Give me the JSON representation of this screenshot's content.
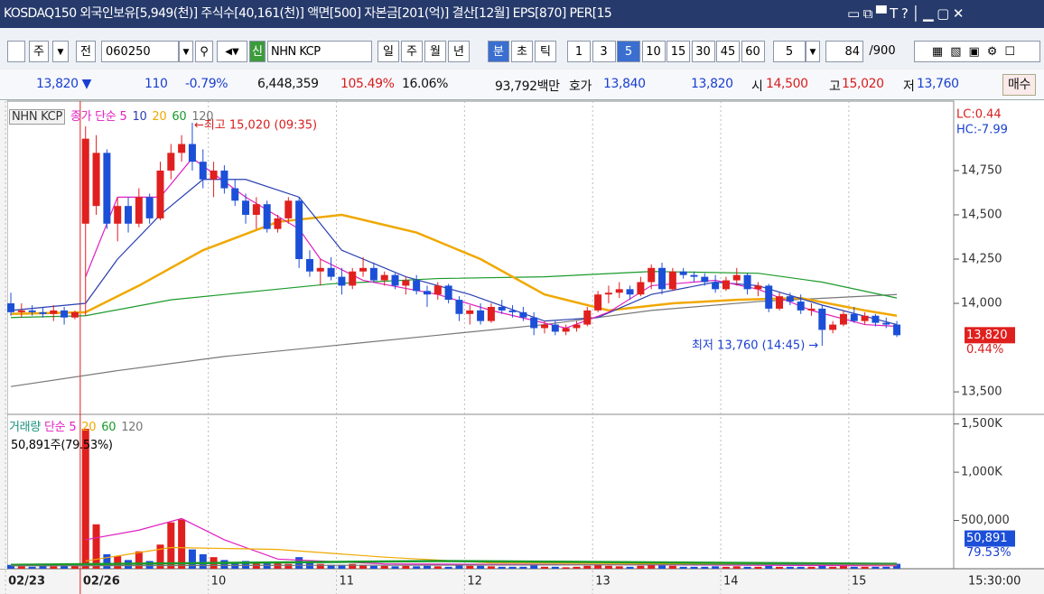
{
  "titlebar": {
    "text": "KOSDAQ150 외국인보유[5,949(천)] 주식수[40,161(천)] 액면[500] 자본금[201(억)] 결산[12월] EPS[870] PER[15"
  },
  "toolbar": {
    "left": [
      "주",
      "전"
    ],
    "code": "060250",
    "new": "신",
    "name": "NHN KCP",
    "periods": [
      {
        "label": "일"
      },
      {
        "label": "주"
      },
      {
        "label": "월"
      },
      {
        "label": "년"
      },
      {
        "label": "분",
        "selected": true
      },
      {
        "label": "초"
      },
      {
        "label": "틱"
      }
    ],
    "minutes": [
      {
        "label": "1"
      },
      {
        "label": "3"
      },
      {
        "label": "5",
        "selected": true
      },
      {
        "label": "10"
      },
      {
        "label": "15"
      },
      {
        "label": "30"
      },
      {
        "label": "45"
      },
      {
        "label": "60"
      }
    ],
    "count": "5",
    "shown": "84",
    "total": "/900"
  },
  "quote": [
    {
      "text": "13,820 ▼",
      "color": "#1a3fd0"
    },
    {
      "text": "110",
      "color": "#1a3fd0"
    },
    {
      "text": "-0.79%",
      "color": "#1a3fd0"
    },
    {
      "text": "6,448,359",
      "color": "#111111"
    },
    {
      "text": "105.49%",
      "color": "#d81e1e"
    },
    {
      "text": "16.06%",
      "color": "#111111"
    },
    {
      "text": "93,792백만",
      "color": "#111111"
    },
    {
      "text": "호가",
      "color": "#111111"
    },
    {
      "text": "13,840",
      "color": "#1a3fd0"
    },
    {
      "text": "13,820",
      "color": "#1a3fd0"
    },
    {
      "text": "시",
      "color": "#111111"
    },
    {
      "text": "14,500",
      "color": "#d81e1e"
    },
    {
      "text": "고",
      "color": "#111111"
    },
    {
      "text": "15,020",
      "color": "#d81e1e"
    },
    {
      "text": "저",
      "color": "#111111"
    },
    {
      "text": "13,760",
      "color": "#1a3fd0"
    },
    {
      "text": "매수",
      "color": "#111111"
    }
  ],
  "chart": {
    "type": "candlestick",
    "name": "NHN KCP",
    "ma_label": "종가 단순",
    "up_color": "#e0201e",
    "down_color": "#1c4fd8",
    "ylim": [
      13378,
      15122
    ],
    "yticks": [
      {
        "value": 14750,
        "label": "14,750"
      },
      {
        "value": 14500,
        "label": "14,500"
      },
      {
        "value": 14250,
        "label": "14,250"
      },
      {
        "value": 14000,
        "label": "14,000"
      },
      {
        "value": 13500,
        "label": "13,500"
      }
    ],
    "lc": "LC:0.44",
    "hc": "HC:-7.99",
    "last_label": "13,820",
    "last_pct": "0.44%",
    "high_note": "←최고 15,020 (09:35)",
    "low_note": "최저 13,760 (14:45) →",
    "xlabels": [
      {
        "index": 0,
        "label": "02/23"
      },
      {
        "index": 7,
        "label": "02/26"
      },
      {
        "index": 19,
        "label": "10"
      },
      {
        "index": 31,
        "label": "11"
      },
      {
        "index": 43,
        "label": "12"
      },
      {
        "index": 55,
        "label": "13"
      },
      {
        "index": 67,
        "label": "14"
      },
      {
        "index": 79,
        "label": "15"
      }
    ],
    "time": "15:30:00",
    "candles": [
      {
        "o": 14000,
        "h": 14060,
        "l": 13930,
        "c": 13950
      },
      {
        "o": 13950,
        "h": 14000,
        "l": 13920,
        "c": 13960
      },
      {
        "o": 13960,
        "h": 13990,
        "l": 13930,
        "c": 13950
      },
      {
        "o": 13950,
        "h": 13980,
        "l": 13920,
        "c": 13940
      },
      {
        "o": 13940,
        "h": 13990,
        "l": 13900,
        "c": 13960
      },
      {
        "o": 13960,
        "h": 13980,
        "l": 13880,
        "c": 13920
      },
      {
        "o": 13920,
        "h": 13960,
        "l": 13910,
        "c": 13950
      },
      {
        "o": 14450,
        "h": 15000,
        "l": 13930,
        "c": 14930
      },
      {
        "o": 14550,
        "h": 14950,
        "l": 14500,
        "c": 14850
      },
      {
        "o": 14850,
        "h": 14870,
        "l": 14420,
        "c": 14450
      },
      {
        "o": 14450,
        "h": 14600,
        "l": 14350,
        "c": 14550
      },
      {
        "o": 14550,
        "h": 14600,
        "l": 14400,
        "c": 14450
      },
      {
        "o": 14450,
        "h": 14650,
        "l": 14430,
        "c": 14600
      },
      {
        "o": 14600,
        "h": 14620,
        "l": 14450,
        "c": 14480
      },
      {
        "o": 14480,
        "h": 14800,
        "l": 14470,
        "c": 14750
      },
      {
        "o": 14750,
        "h": 14900,
        "l": 14700,
        "c": 14850
      },
      {
        "o": 14850,
        "h": 14950,
        "l": 14800,
        "c": 14900
      },
      {
        "o": 14900,
        "h": 15020,
        "l": 14750,
        "c": 14800
      },
      {
        "o": 14800,
        "h": 14870,
        "l": 14650,
        "c": 14700
      },
      {
        "o": 14700,
        "h": 14800,
        "l": 14600,
        "c": 14750
      },
      {
        "o": 14750,
        "h": 14780,
        "l": 14620,
        "c": 14650
      },
      {
        "o": 14650,
        "h": 14700,
        "l": 14550,
        "c": 14580
      },
      {
        "o": 14580,
        "h": 14620,
        "l": 14450,
        "c": 14500
      },
      {
        "o": 14500,
        "h": 14600,
        "l": 14420,
        "c": 14560
      },
      {
        "o": 14560,
        "h": 14580,
        "l": 14400,
        "c": 14420
      },
      {
        "o": 14420,
        "h": 14500,
        "l": 14400,
        "c": 14480
      },
      {
        "o": 14480,
        "h": 14600,
        "l": 14450,
        "c": 14580
      },
      {
        "o": 14580,
        "h": 14600,
        "l": 14200,
        "c": 14250
      },
      {
        "o": 14250,
        "h": 14300,
        "l": 14150,
        "c": 14180
      },
      {
        "o": 14180,
        "h": 14250,
        "l": 14100,
        "c": 14200
      },
      {
        "o": 14200,
        "h": 14260,
        "l": 14130,
        "c": 14150
      },
      {
        "o": 14150,
        "h": 14200,
        "l": 14050,
        "c": 14100
      },
      {
        "o": 14100,
        "h": 14200,
        "l": 14080,
        "c": 14180
      },
      {
        "o": 14180,
        "h": 14260,
        "l": 14150,
        "c": 14200
      },
      {
        "o": 14200,
        "h": 14230,
        "l": 14120,
        "c": 14130
      },
      {
        "o": 14130,
        "h": 14180,
        "l": 14100,
        "c": 14160
      },
      {
        "o": 14160,
        "h": 14170,
        "l": 14080,
        "c": 14100
      },
      {
        "o": 14100,
        "h": 14150,
        "l": 14050,
        "c": 14130
      },
      {
        "o": 14130,
        "h": 14160,
        "l": 14050,
        "c": 14070
      },
      {
        "o": 14070,
        "h": 14100,
        "l": 13980,
        "c": 14050
      },
      {
        "o": 14050,
        "h": 14120,
        "l": 14020,
        "c": 14100
      },
      {
        "o": 14100,
        "h": 14110,
        "l": 14000,
        "c": 14020
      },
      {
        "o": 14020,
        "h": 14040,
        "l": 13900,
        "c": 13940
      },
      {
        "o": 13940,
        "h": 13990,
        "l": 13880,
        "c": 13960
      },
      {
        "o": 13960,
        "h": 14000,
        "l": 13880,
        "c": 13900
      },
      {
        "o": 13900,
        "h": 14000,
        "l": 13890,
        "c": 13980
      },
      {
        "o": 13980,
        "h": 14020,
        "l": 13940,
        "c": 13960
      },
      {
        "o": 13960,
        "h": 13990,
        "l": 13920,
        "c": 13950
      },
      {
        "o": 13950,
        "h": 13980,
        "l": 13900,
        "c": 13920
      },
      {
        "o": 13920,
        "h": 13950,
        "l": 13820,
        "c": 13860
      },
      {
        "o": 13860,
        "h": 13900,
        "l": 13830,
        "c": 13880
      },
      {
        "o": 13880,
        "h": 13900,
        "l": 13820,
        "c": 13840
      },
      {
        "o": 13840,
        "h": 13880,
        "l": 13820,
        "c": 13860
      },
      {
        "o": 13860,
        "h": 13900,
        "l": 13840,
        "c": 13880
      },
      {
        "o": 13880,
        "h": 13980,
        "l": 13870,
        "c": 13960
      },
      {
        "o": 13960,
        "h": 14070,
        "l": 13950,
        "c": 14050
      },
      {
        "o": 14050,
        "h": 14100,
        "l": 14000,
        "c": 14060
      },
      {
        "o": 14060,
        "h": 14120,
        "l": 14030,
        "c": 14080
      },
      {
        "o": 14080,
        "h": 14100,
        "l": 14020,
        "c": 14050
      },
      {
        "o": 14050,
        "h": 14150,
        "l": 14040,
        "c": 14120
      },
      {
        "o": 14120,
        "h": 14220,
        "l": 14080,
        "c": 14200
      },
      {
        "o": 14200,
        "h": 14230,
        "l": 14050,
        "c": 14080
      },
      {
        "o": 14080,
        "h": 14200,
        "l": 14070,
        "c": 14180
      },
      {
        "o": 14180,
        "h": 14200,
        "l": 14140,
        "c": 14160
      },
      {
        "o": 14160,
        "h": 14180,
        "l": 14120,
        "c": 14150
      },
      {
        "o": 14150,
        "h": 14170,
        "l": 14100,
        "c": 14120
      },
      {
        "o": 14120,
        "h": 14160,
        "l": 14060,
        "c": 14080
      },
      {
        "o": 14080,
        "h": 14150,
        "l": 14070,
        "c": 14130
      },
      {
        "o": 14130,
        "h": 14200,
        "l": 14100,
        "c": 14160
      },
      {
        "o": 14160,
        "h": 14170,
        "l": 14050,
        "c": 14080
      },
      {
        "o": 14080,
        "h": 14120,
        "l": 14040,
        "c": 14100
      },
      {
        "o": 14100,
        "h": 14110,
        "l": 13950,
        "c": 13970
      },
      {
        "o": 13970,
        "h": 14060,
        "l": 13960,
        "c": 14040
      },
      {
        "o": 14040,
        "h": 14060,
        "l": 13990,
        "c": 14010
      },
      {
        "o": 14010,
        "h": 14050,
        "l": 13940,
        "c": 13960
      },
      {
        "o": 13960,
        "h": 14000,
        "l": 13930,
        "c": 13970
      },
      {
        "o": 13970,
        "h": 13990,
        "l": 13760,
        "c": 13850
      },
      {
        "o": 13850,
        "h": 13900,
        "l": 13830,
        "c": 13880
      },
      {
        "o": 13880,
        "h": 13960,
        "l": 13870,
        "c": 13940
      },
      {
        "o": 13940,
        "h": 13980,
        "l": 13890,
        "c": 13900
      },
      {
        "o": 13900,
        "h": 13950,
        "l": 13880,
        "c": 13930
      },
      {
        "o": 13930,
        "h": 13940,
        "l": 13870,
        "c": 13890
      },
      {
        "o": 13890,
        "h": 13920,
        "l": 13860,
        "c": 13880
      },
      {
        "o": 13880,
        "h": 13900,
        "l": 13810,
        "c": 13820
      }
    ],
    "ma": [
      {
        "name": "5",
        "color": "#e020c0",
        "x": [
          7,
          10,
          14,
          17,
          22,
          27,
          29,
          33,
          40,
          45,
          52,
          56,
          60,
          66,
          70,
          75,
          80,
          83
        ],
        "values": [
          14150,
          14600,
          14600,
          14820,
          14600,
          14420,
          14250,
          14130,
          14050,
          13960,
          13860,
          13950,
          14100,
          14130,
          14080,
          13960,
          13880,
          13870
        ]
      },
      {
        "name": "10",
        "color": "#2a3fb0",
        "x": [
          0,
          7,
          10,
          14,
          18,
          22,
          27,
          31,
          37,
          43,
          50,
          55,
          60,
          66,
          70,
          76,
          83
        ],
        "values": [
          13960,
          14000,
          14250,
          14500,
          14700,
          14700,
          14600,
          14300,
          14150,
          14050,
          13900,
          13920,
          14050,
          14120,
          14100,
          13990,
          13880
        ]
      },
      {
        "name": "20",
        "color": "#f0a800",
        "x": [
          0,
          7,
          12,
          18,
          25,
          31,
          38,
          44,
          50,
          56,
          62,
          68,
          74,
          80,
          83
        ],
        "values": [
          13940,
          13950,
          14100,
          14300,
          14460,
          14500,
          14400,
          14250,
          14050,
          13960,
          14000,
          14020,
          14030,
          13960,
          13930
        ]
      },
      {
        "name": "60",
        "color": "#1a9a2a",
        "x": [
          0,
          7,
          15,
          25,
          30,
          40,
          50,
          60,
          70,
          76,
          83
        ],
        "values": [
          13920,
          13930,
          14020,
          14080,
          14110,
          14140,
          14150,
          14180,
          14170,
          14120,
          14030
        ]
      },
      {
        "name": "120",
        "color": "#777777",
        "x": [
          0,
          10,
          20,
          30,
          40,
          50,
          60,
          70,
          83
        ],
        "values": [
          13530,
          13620,
          13700,
          13760,
          13820,
          13880,
          13960,
          14010,
          14050
        ]
      }
    ],
    "volume": {
      "label": "거래량",
      "ma_label": "단순",
      "note": "50,891주(79.53%)",
      "ylim": [
        0,
        1590000
      ],
      "yticks": [
        {
          "value": 1500000,
          "label": "1,500K"
        },
        {
          "value": 1000000,
          "label": "1,000K"
        },
        {
          "value": 500000,
          "label": "500,000"
        }
      ],
      "last_label": "50,891",
      "last_pct": "79.53%",
      "values": [
        40000,
        25000,
        20000,
        30000,
        25000,
        45000,
        30000,
        1450000,
        460000,
        150000,
        130000,
        90000,
        180000,
        80000,
        250000,
        480000,
        510000,
        200000,
        150000,
        120000,
        90000,
        70000,
        80000,
        60000,
        70000,
        60000,
        50000,
        120000,
        70000,
        50000,
        40000,
        40000,
        50000,
        40000,
        30000,
        30000,
        25000,
        30000,
        25000,
        30000,
        25000,
        20000,
        40000,
        30000,
        30000,
        25000,
        20000,
        20000,
        20000,
        35000,
        20000,
        20000,
        15000,
        20000,
        30000,
        40000,
        30000,
        25000,
        20000,
        30000,
        40000,
        35000,
        30000,
        20000,
        20000,
        20000,
        25000,
        20000,
        25000,
        20000,
        20000,
        30000,
        20000,
        20000,
        20000,
        20000,
        40000,
        20000,
        30000,
        20000,
        20000,
        20000,
        20000,
        50891
      ],
      "ma": [
        {
          "name": "5",
          "color": "#e020c0",
          "x": [
            7,
            12,
            16,
            20,
            25,
            35,
            83
          ],
          "values": [
            300000,
            400000,
            520000,
            300000,
            100000,
            50000,
            30000
          ]
        },
        {
          "name": "20",
          "color": "#f0a800",
          "x": [
            7,
            15,
            25,
            35,
            45,
            83
          ],
          "values": [
            80000,
            220000,
            200000,
            120000,
            60000,
            40000
          ]
        },
        {
          "name": "60",
          "color": "#1a9a2a",
          "x": [
            0,
            40,
            83
          ],
          "values": [
            40000,
            80000,
            50000
          ]
        },
        {
          "name": "120",
          "color": "#777777",
          "x": [
            0,
            83
          ],
          "values": [
            30000,
            45000
          ]
        }
      ]
    }
  }
}
